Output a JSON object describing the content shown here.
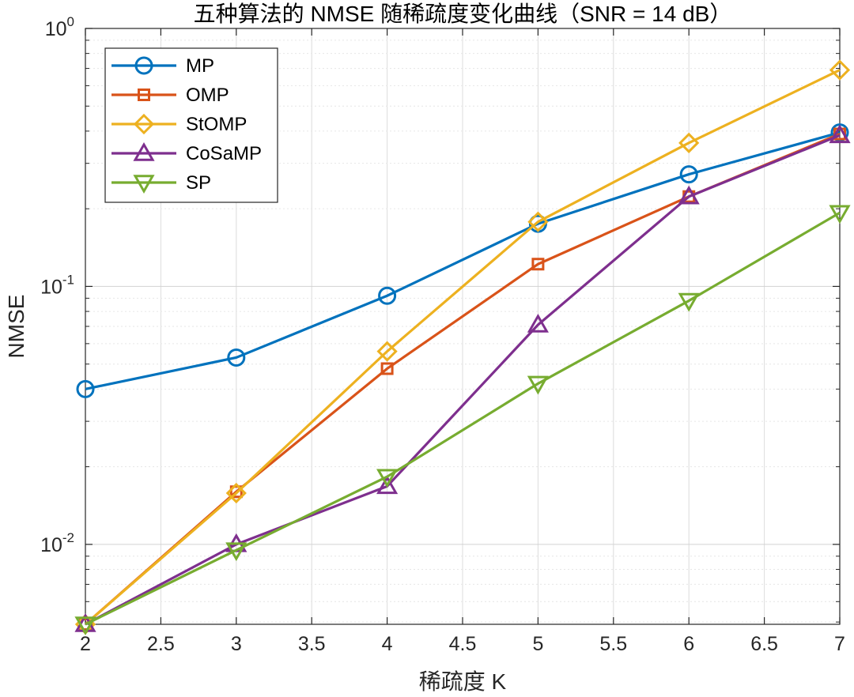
{
  "chart_data": {
    "type": "line",
    "title": "五种算法的 NMSE 随稀疏度变化曲线（SNR = 14 dB）",
    "xlabel": "稀疏度 K",
    "ylabel": "NMSE",
    "yscale": "log",
    "xlim": [
      2,
      7
    ],
    "ylim": [
      0.0049,
      1
    ],
    "grid": true,
    "legend_position": "top-left",
    "x": [
      2,
      3,
      4,
      5,
      6,
      7
    ],
    "xticks": [
      "2",
      "2.5",
      "3",
      "3.5",
      "4",
      "4.5",
      "5",
      "5.5",
      "6",
      "6.5",
      "7"
    ],
    "yticks": [
      {
        "base": "10",
        "exp": "0"
      },
      {
        "base": "10",
        "exp": "-1"
      },
      {
        "base": "10",
        "exp": "-2"
      }
    ],
    "series": [
      {
        "name": "MP",
        "color": "#0072BD",
        "marker": "circle",
        "values": [
          0.04,
          0.053,
          0.092,
          0.175,
          0.272,
          0.395
        ]
      },
      {
        "name": "OMP",
        "color": "#D95319",
        "marker": "square",
        "values": [
          0.0049,
          0.016,
          0.048,
          0.122,
          0.223,
          0.39
        ]
      },
      {
        "name": "StOMP",
        "color": "#EDB120",
        "marker": "diamond",
        "values": [
          0.0049,
          0.0158,
          0.056,
          0.178,
          0.36,
          0.69
        ]
      },
      {
        "name": "CoSaMP",
        "color": "#7E2F8E",
        "marker": "triangle-up",
        "values": [
          0.0049,
          0.01,
          0.0168,
          0.071,
          0.223,
          0.385
        ]
      },
      {
        "name": "SP",
        "color": "#77AC30",
        "marker": "triangle-down",
        "values": [
          0.0049,
          0.0095,
          0.0183,
          0.042,
          0.088,
          0.193
        ]
      }
    ]
  }
}
